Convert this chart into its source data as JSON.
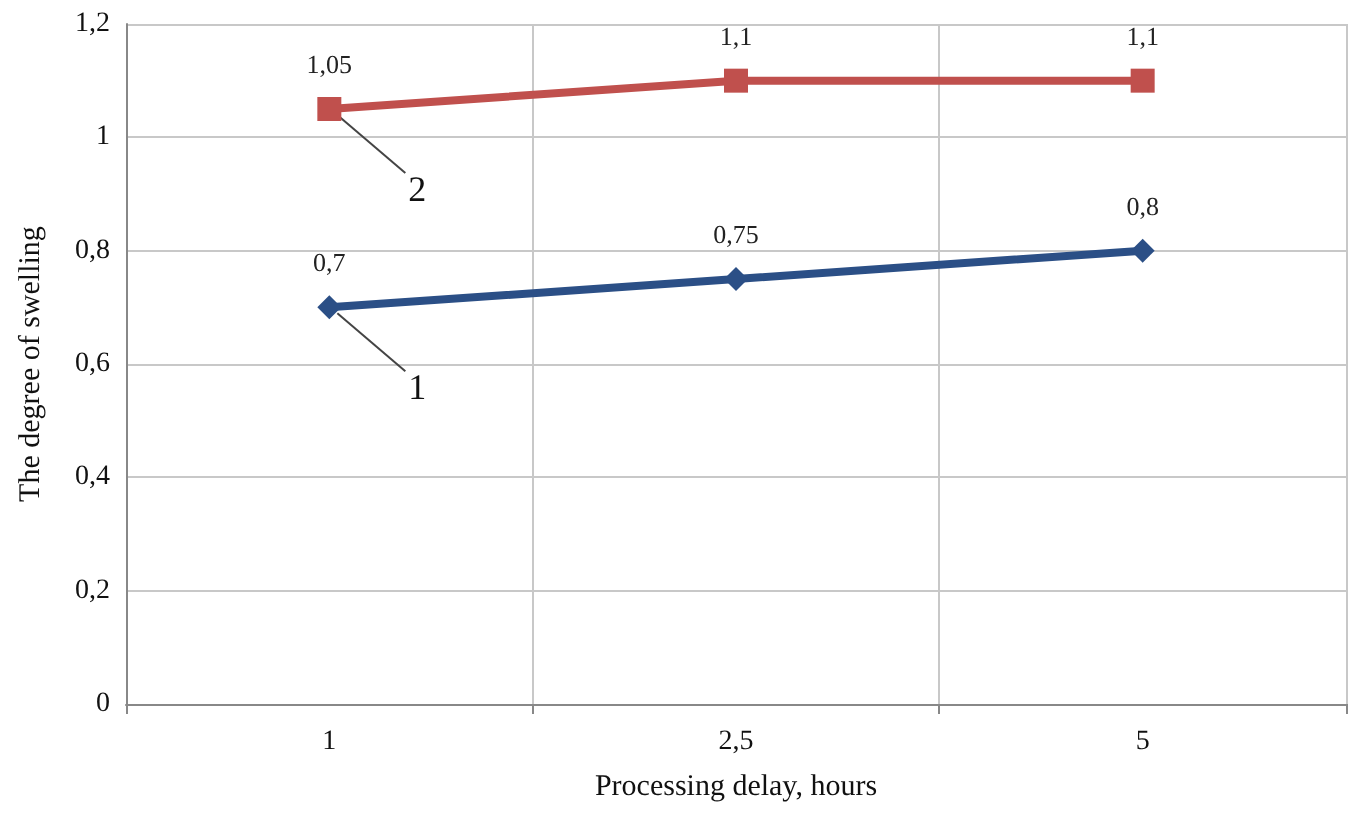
{
  "chart_data": {
    "type": "line",
    "xlabel": "Processing delay, hours",
    "ylabel": "The degree of swelling",
    "categories": [
      "1",
      "2,5",
      "5"
    ],
    "series": [
      {
        "name": "1",
        "color": "#2b4f86",
        "marker": "diamond",
        "values": [
          0.7,
          0.75,
          0.8
        ],
        "value_labels": [
          "0,7",
          "0,75",
          "0,8"
        ]
      },
      {
        "name": "2",
        "color": "#c0504d",
        "marker": "square",
        "values": [
          1.05,
          1.1,
          1.1
        ],
        "value_labels": [
          "1,05",
          "1,1",
          "1,1"
        ]
      }
    ],
    "ylim": [
      0,
      1.2
    ],
    "yticks": [
      {
        "value": 0,
        "label": "0"
      },
      {
        "value": 0.2,
        "label": "0,2"
      },
      {
        "value": 0.4,
        "label": "0,4"
      },
      {
        "value": 0.6,
        "label": "0,6"
      },
      {
        "value": 0.8,
        "label": "0,8"
      },
      {
        "value": 1,
        "label": "1"
      },
      {
        "value": 1.2,
        "label": "1,2"
      }
    ],
    "grid": true
  }
}
